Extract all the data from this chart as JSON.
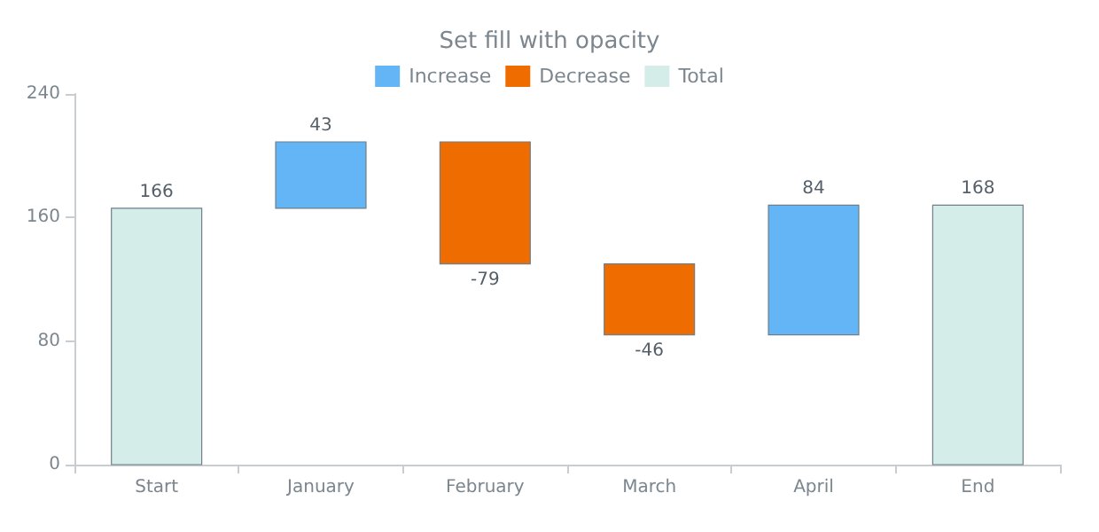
{
  "chart_data": {
    "type": "bar",
    "title": "Set fill with opacity",
    "categories": [
      "Start",
      "January",
      "February",
      "March",
      "April",
      "End"
    ],
    "series": [
      {
        "name": "Increase",
        "color": "#64b5f6",
        "values": [
          null,
          43,
          null,
          null,
          84,
          null
        ],
        "base": [
          null,
          166,
          null,
          null,
          84,
          null
        ]
      },
      {
        "name": "Decrease",
        "color": "#ef6c00",
        "values": [
          null,
          null,
          -79,
          -46,
          null,
          null
        ],
        "base": [
          null,
          null,
          209,
          130,
          null,
          null
        ]
      },
      {
        "name": "Total",
        "color": "#d4ede9",
        "values": [
          166,
          null,
          null,
          null,
          null,
          168
        ],
        "base": [
          0,
          null,
          null,
          null,
          null,
          0
        ]
      }
    ],
    "ylim": [
      0,
      240
    ],
    "yticks": [
      0,
      80,
      160,
      240
    ],
    "grid": false,
    "legend": "top",
    "data_labels": true
  }
}
